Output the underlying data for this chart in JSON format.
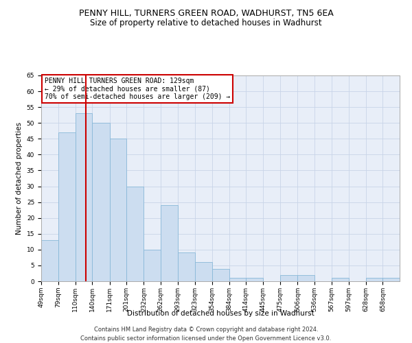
{
  "title1": "PENNY HILL, TURNERS GREEN ROAD, WADHURST, TN5 6EA",
  "title2": "Size of property relative to detached houses in Wadhurst",
  "xlabel": "Distribution of detached houses by size in Wadhurst",
  "ylabel": "Number of detached properties",
  "bin_labels": [
    "49sqm",
    "79sqm",
    "110sqm",
    "140sqm",
    "171sqm",
    "201sqm",
    "232sqm",
    "262sqm",
    "293sqm",
    "323sqm",
    "354sqm",
    "384sqm",
    "414sqm",
    "445sqm",
    "475sqm",
    "506sqm",
    "536sqm",
    "567sqm",
    "597sqm",
    "628sqm",
    "658sqm"
  ],
  "bar_values": [
    13,
    47,
    53,
    50,
    45,
    30,
    10,
    24,
    9,
    6,
    4,
    1,
    1,
    0,
    2,
    2,
    0,
    1,
    0,
    1,
    1
  ],
  "bar_color": "#ccddf0",
  "bar_edge_color": "#88b8d8",
  "grid_color": "#c8d4e8",
  "background_color": "#e8eef8",
  "vline_x": 129,
  "vline_color": "#cc0000",
  "bin_edges": [
    49,
    79,
    110,
    140,
    171,
    201,
    232,
    262,
    293,
    323,
    354,
    384,
    414,
    445,
    475,
    506,
    536,
    567,
    597,
    628,
    658,
    688
  ],
  "annotation_text": "PENNY HILL TURNERS GREEN ROAD: 129sqm\n← 29% of detached houses are smaller (87)\n70% of semi-detached houses are larger (209) →",
  "annotation_box_color": "#ffffff",
  "annotation_box_edge_color": "#cc0000",
  "ylim": [
    0,
    65
  ],
  "yticks": [
    0,
    5,
    10,
    15,
    20,
    25,
    30,
    35,
    40,
    45,
    50,
    55,
    60,
    65
  ],
  "footer1": "Contains HM Land Registry data © Crown copyright and database right 2024.",
  "footer2": "Contains public sector information licensed under the Open Government Licence v3.0.",
  "title_fontsize": 9,
  "subtitle_fontsize": 8.5,
  "axis_label_fontsize": 7.5,
  "tick_fontsize": 6.5,
  "annotation_fontsize": 7,
  "footer_fontsize": 6
}
